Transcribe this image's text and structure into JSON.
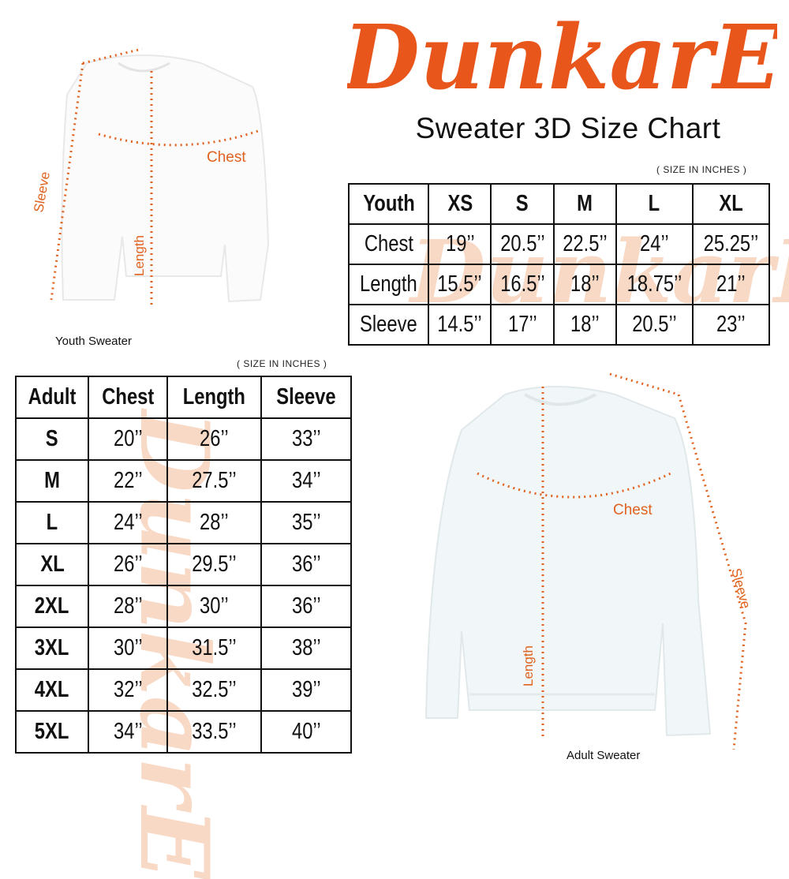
{
  "logo": {
    "text": "DunkarE",
    "color": "#e8561c"
  },
  "title": "Sweater 3D Size Chart",
  "accent_color": "#e0621e",
  "youth": {
    "unit_note": "( SIZE IN INCHES )",
    "caption": "Youth Sweater",
    "diagram_labels": {
      "chest": "Chest",
      "length": "Length",
      "sleeve": "Sleeve"
    },
    "headers": [
      "Youth",
      "XS",
      "S",
      "M",
      "L",
      "XL"
    ],
    "rows": [
      [
        "Chest",
        "19’’",
        "20.5’’",
        "22.5’’",
        "24’’",
        "25.25’’"
      ],
      [
        "Length",
        "15.5’’",
        "16.5’’",
        "18’’",
        "18.75’’",
        "21’’"
      ],
      [
        "Sleeve",
        "14.5’’",
        "17’’",
        "18’’",
        "20.5’’",
        "23’’"
      ]
    ]
  },
  "adult": {
    "unit_note": "( SIZE IN INCHES )",
    "caption": "Adult Sweater",
    "diagram_labels": {
      "chest": "Chest",
      "length": "Length",
      "sleeve": "Sleeve"
    },
    "headers": [
      "Adult",
      "Chest",
      "Length",
      "Sleeve"
    ],
    "rows": [
      [
        "S",
        "20’’",
        "26’’",
        "33’’"
      ],
      [
        "M",
        "22’’",
        "27.5’’",
        "34’’"
      ],
      [
        "L",
        "24’’",
        "28’’",
        "35’’"
      ],
      [
        "XL",
        "26’’",
        "29.5’’",
        "36’’"
      ],
      [
        "2XL",
        "28’’",
        "30’’",
        "36’’"
      ],
      [
        "3XL",
        "30’’",
        "31.5’’",
        "38’’"
      ],
      [
        "4XL",
        "32’’",
        "32.5’’",
        "39’’"
      ],
      [
        "5XL",
        "34’’",
        "33.5’’",
        "40’’"
      ]
    ]
  }
}
